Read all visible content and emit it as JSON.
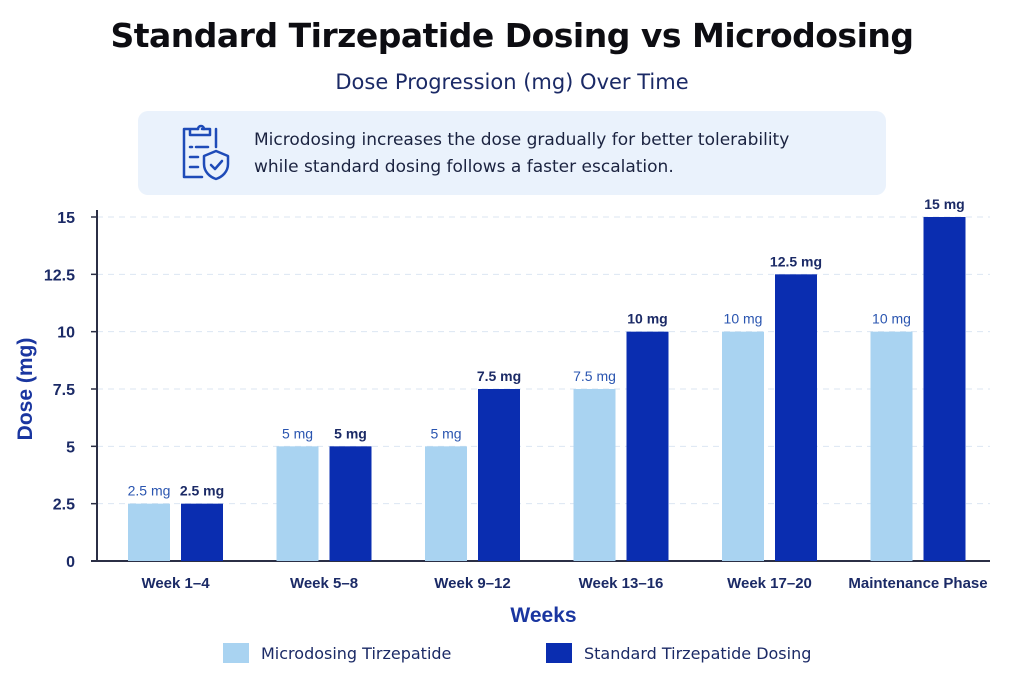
{
  "title": "Standard Tirzepatide Dosing vs Microdosing",
  "subtitle": "Dose Progression (mg) Over Time",
  "note": {
    "icon": "clipboard-shield-check-icon",
    "line1": "Microdosing increases the dose gradually for better tolerability",
    "line2": "while standard dosing follows a faster escalation."
  },
  "colors": {
    "micro": "#a9d3f1",
    "standard": "#0a2db0",
    "text": "#1b2a66"
  },
  "chart_data": {
    "type": "bar",
    "categories": [
      "Week 1–4",
      "Week 5–8",
      "Week 9–12",
      "Week 13–16",
      "Week 17–20",
      "Maintenance Phase"
    ],
    "series": [
      {
        "name": "Microdosing Tirzepatide",
        "values": [
          2.5,
          5,
          5,
          7.5,
          10,
          10
        ],
        "labels": [
          "2.5 mg",
          "5 mg",
          "5 mg",
          "7.5 mg",
          "10 mg",
          "10 mg"
        ]
      },
      {
        "name": "Standard Tirzepatide Dosing",
        "values": [
          2.5,
          5,
          7.5,
          10,
          12.5,
          15
        ],
        "labels": [
          "2.5 mg",
          "5 mg",
          "7.5 mg",
          "10 mg",
          "12.5 mg",
          "15 mg"
        ]
      }
    ],
    "xlabel": "Weeks",
    "ylabel": "Dose (mg)",
    "yticks": [
      "0",
      "2.5",
      "5",
      "7.5",
      "10",
      "12.5",
      "15"
    ],
    "ylim": [
      0,
      15
    ],
    "grid": true,
    "legend": "bottom"
  }
}
